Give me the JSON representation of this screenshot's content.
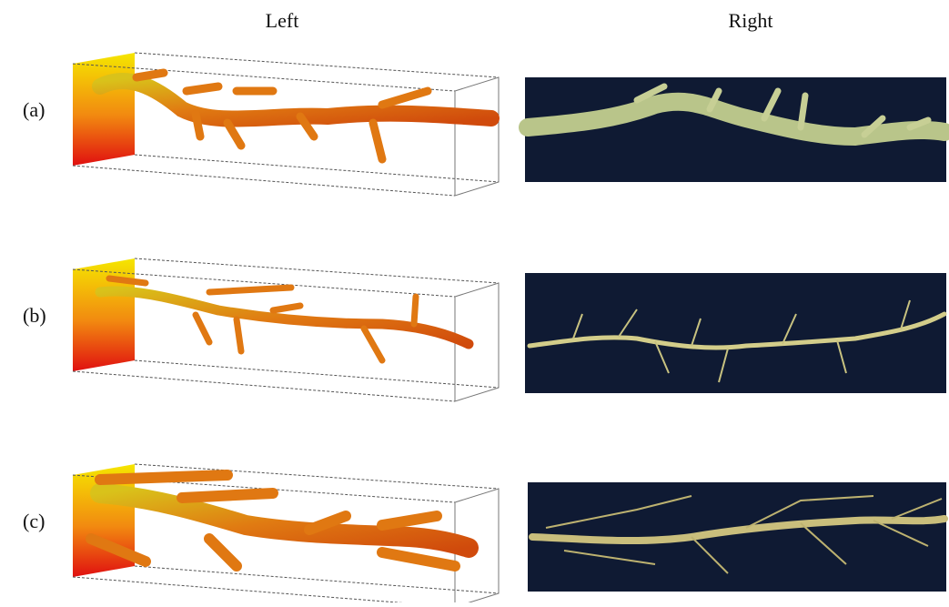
{
  "columns": {
    "left": "Left",
    "right": "Right"
  },
  "rows": [
    {
      "label": "(a)"
    },
    {
      "label": "(b)"
    },
    {
      "label": "(c)"
    }
  ]
}
